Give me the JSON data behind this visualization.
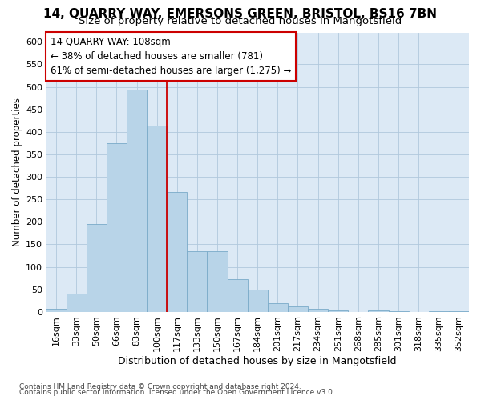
{
  "title_line1": "14, QUARRY WAY, EMERSONS GREEN, BRISTOL, BS16 7BN",
  "title_line2": "Size of property relative to detached houses in Mangotsfield",
  "xlabel": "Distribution of detached houses by size in Mangotsfield",
  "ylabel": "Number of detached properties",
  "bar_labels": [
    "16sqm",
    "33sqm",
    "50sqm",
    "66sqm",
    "83sqm",
    "100sqm",
    "117sqm",
    "133sqm",
    "150sqm",
    "167sqm",
    "184sqm",
    "201sqm",
    "217sqm",
    "234sqm",
    "251sqm",
    "268sqm",
    "285sqm",
    "301sqm",
    "318sqm",
    "335sqm",
    "352sqm"
  ],
  "bar_values": [
    7,
    40,
    195,
    375,
    493,
    413,
    267,
    135,
    135,
    72,
    50,
    20,
    12,
    7,
    3,
    0,
    4,
    1,
    0,
    1,
    1
  ],
  "bar_color": "#b8d4e8",
  "bar_edge_color": "#7aaac8",
  "vline_x": 5.5,
  "vline_color": "#cc0000",
  "annotation_line1": "14 QUARRY WAY: 108sqm",
  "annotation_line2": "← 38% of detached houses are smaller (781)",
  "annotation_line3": "61% of semi-detached houses are larger (1,275) →",
  "annotation_box_facecolor": "#ffffff",
  "annotation_box_edgecolor": "#cc0000",
  "ylim": [
    0,
    620
  ],
  "yticks": [
    0,
    50,
    100,
    150,
    200,
    250,
    300,
    350,
    400,
    450,
    500,
    550,
    600
  ],
  "plot_bg_color": "#dce9f5",
  "fig_bg_color": "#ffffff",
  "grid_color": "#b0c8dc",
  "footnote1": "Contains HM Land Registry data © Crown copyright and database right 2024.",
  "footnote2": "Contains public sector information licensed under the Open Government Licence v3.0.",
  "title1_fontsize": 11,
  "title2_fontsize": 9.5,
  "tick_fontsize": 8,
  "xlabel_fontsize": 9,
  "ylabel_fontsize": 8.5,
  "annot_fontsize": 8.5,
  "footnote_fontsize": 6.5
}
